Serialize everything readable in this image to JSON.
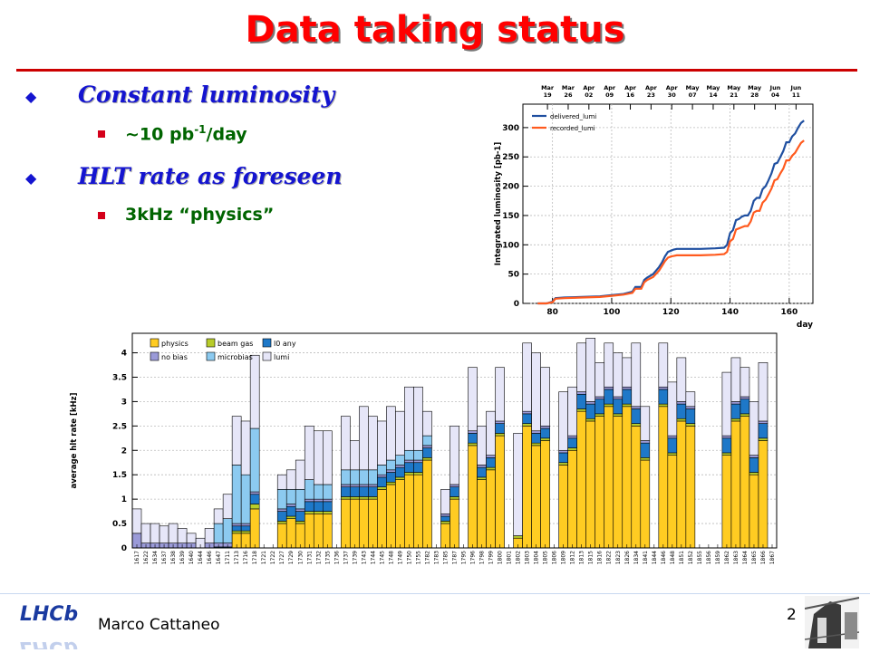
{
  "slide": {
    "title": "Data taking status",
    "author": "Marco Cattaneo",
    "page": "2",
    "logo_text": "LHCb"
  },
  "bullets": [
    {
      "text": "Constant luminosity",
      "sub": [
        "~10 pb",
        "-1",
        "/day"
      ]
    },
    {
      "text": "HLT rate as foreseen",
      "sub": [
        "3kHz “physics”"
      ]
    }
  ],
  "chart_data": [
    {
      "type": "line",
      "ylabel": "Integrated luminosity [pb-1]",
      "xlabel": "day",
      "xlim": [
        70,
        168
      ],
      "ylim": [
        0,
        340
      ],
      "xticks": [
        80,
        100,
        120,
        140,
        160
      ],
      "yticks": [
        0,
        50,
        100,
        150,
        200,
        250,
        300
      ],
      "top_axis": [
        {
          "m": "Mar",
          "d": "19",
          "x": 78.3
        },
        {
          "m": "Mar",
          "d": "26",
          "x": 85.3
        },
        {
          "m": "Apr",
          "d": "02",
          "x": 92.3
        },
        {
          "m": "Apr",
          "d": "09",
          "x": 99.3
        },
        {
          "m": "Apr",
          "d": "16",
          "x": 106.3
        },
        {
          "m": "Apr",
          "d": "23",
          "x": 113.3
        },
        {
          "m": "Apr",
          "d": "30",
          "x": 120.3
        },
        {
          "m": "May",
          "d": "07",
          "x": 127.3
        },
        {
          "m": "May",
          "d": "14",
          "x": 134.3
        },
        {
          "m": "May",
          "d": "21",
          "x": 141.3
        },
        {
          "m": "May",
          "d": "28",
          "x": 148.3
        },
        {
          "m": "Jun",
          "d": "04",
          "x": 155.3
        },
        {
          "m": "Jun",
          "d": "11",
          "x": 162.3
        }
      ],
      "series": [
        {
          "name": "delivered_lumi",
          "color": "#1f4fa0",
          "x": [
            75,
            78,
            80,
            81,
            84,
            90,
            96,
            100,
            104,
            107,
            108,
            110,
            111,
            112,
            114,
            116,
            117,
            118,
            119,
            120,
            121,
            122,
            130,
            135,
            138,
            139,
            140,
            141,
            142,
            143,
            144,
            145,
            146,
            147,
            148,
            149,
            150,
            151,
            152,
            153,
            154,
            155,
            156,
            157,
            158,
            159,
            160,
            161,
            162,
            163,
            164,
            165
          ],
          "y": [
            0,
            0,
            3,
            9,
            10,
            11,
            12,
            14,
            16,
            20,
            28,
            28,
            40,
            44,
            50,
            62,
            70,
            80,
            88,
            90,
            92,
            93,
            93,
            94,
            95,
            100,
            120,
            125,
            142,
            144,
            148,
            150,
            150,
            158,
            175,
            180,
            180,
            195,
            200,
            210,
            222,
            238,
            240,
            250,
            260,
            275,
            275,
            285,
            290,
            300,
            308,
            312
          ]
        },
        {
          "name": "recorded_lumi",
          "color": "#ff5a1e",
          "x": [
            75,
            78,
            80,
            81,
            84,
            90,
            96,
            100,
            104,
            107,
            108,
            110,
            111,
            112,
            114,
            116,
            117,
            118,
            119,
            120,
            121,
            122,
            130,
            135,
            138,
            139,
            140,
            141,
            142,
            143,
            144,
            145,
            146,
            147,
            148,
            149,
            150,
            151,
            152,
            153,
            154,
            155,
            156,
            157,
            158,
            159,
            160,
            161,
            162,
            163,
            164,
            165
          ],
          "y": [
            0,
            0,
            2,
            8,
            9,
            10,
            11,
            13,
            15,
            18,
            25,
            25,
            36,
            40,
            45,
            56,
            64,
            72,
            78,
            80,
            81,
            82,
            82,
            83,
            84,
            88,
            106,
            110,
            126,
            128,
            130,
            132,
            132,
            140,
            155,
            158,
            158,
            172,
            177,
            186,
            196,
            210,
            212,
            222,
            230,
            244,
            244,
            252,
            257,
            266,
            274,
            278
          ]
        }
      ]
    },
    {
      "type": "bar",
      "stacked": true,
      "ylabel": "average hlt rate [kHz]",
      "ylim": [
        0,
        4.4
      ],
      "yticks": [
        "0",
        "0.5",
        "1",
        "1.5",
        "2",
        "2.5",
        "3",
        "3.5",
        "4"
      ],
      "legend": [
        {
          "name": "physics",
          "color": "#ffcc22"
        },
        {
          "name": "beam gas",
          "color": "#b8cc2a"
        },
        {
          "name": "l0 any",
          "color": "#1e78c8"
        },
        {
          "name": "no bias",
          "color": "#9a9ad8"
        },
        {
          "name": "microbias",
          "color": "#8ccaf0"
        },
        {
          "name": "lumi",
          "color": "#e6e6f8"
        }
      ],
      "series_colors": [
        "#ffcc22",
        "#b8cc2a",
        "#1e78c8",
        "#9a9ad8",
        "#8ccaf0",
        "#e6e6f8"
      ],
      "categories": [
        "1617",
        "1622",
        "1634",
        "1637",
        "1638",
        "1639",
        "1640",
        "1644",
        "1646",
        "1647",
        "1711",
        "1713",
        "1716",
        "1718",
        "1721",
        "1722",
        "1727",
        "1729",
        "1730",
        "1731",
        "1732",
        "1735",
        "1736",
        "1737",
        "1739",
        "1743",
        "1744",
        "1745",
        "1748",
        "1749",
        "1750",
        "1755",
        "1782",
        "1783",
        "1785",
        "1787",
        "1795",
        "1796",
        "1798",
        "1799",
        "1800",
        "1801",
        "1802",
        "1803",
        "1804",
        "1805",
        "1806",
        "1809",
        "1812",
        "1813",
        "1815",
        "1816",
        "1822",
        "1823",
        "1826",
        "1834",
        "1841",
        "1844",
        "1846",
        "1848",
        "1851",
        "1852",
        "1855",
        "1856",
        "1859",
        "1862",
        "1863",
        "1864",
        "1865",
        "1866",
        "1867"
      ],
      "bars": [
        [
          0,
          0,
          0,
          0.3,
          0,
          0.5
        ],
        [
          0,
          0,
          0,
          0.1,
          0,
          0.4
        ],
        [
          0,
          0,
          0,
          0.1,
          0,
          0.4
        ],
        [
          0,
          0,
          0,
          0.1,
          0,
          0.35
        ],
        [
          0,
          0,
          0,
          0.1,
          0,
          0.4
        ],
        [
          0,
          0,
          0,
          0.1,
          0,
          0.3
        ],
        [
          0,
          0,
          0,
          0.1,
          0,
          0.2
        ],
        [
          0,
          0,
          0,
          0,
          0,
          0.2
        ],
        [
          0,
          0,
          0,
          0.1,
          0,
          0.3
        ],
        [
          0,
          0,
          0.02,
          0.08,
          0.4,
          0.3
        ],
        [
          0,
          0,
          0.02,
          0.08,
          0.5,
          0.5
        ],
        [
          0.3,
          0.05,
          0.1,
          0.05,
          1.2,
          1.0
        ],
        [
          0.3,
          0.05,
          0.1,
          0.05,
          1.0,
          1.1
        ],
        [
          0.8,
          0.1,
          0.2,
          0.05,
          1.3,
          1.5
        ],
        [
          0,
          0,
          0,
          0,
          0,
          0
        ],
        [
          0,
          0,
          0,
          0,
          0,
          0
        ],
        [
          0.5,
          0.05,
          0.2,
          0.05,
          0.4,
          0.3
        ],
        [
          0.6,
          0.05,
          0.2,
          0.05,
          0.3,
          0.4
        ],
        [
          0.5,
          0.05,
          0.2,
          0.05,
          0.4,
          0.6
        ],
        [
          0.7,
          0.05,
          0.2,
          0.05,
          0.4,
          1.1
        ],
        [
          0.7,
          0.05,
          0.2,
          0.05,
          0.3,
          1.1
        ],
        [
          0.7,
          0.05,
          0.2,
          0.05,
          0.3,
          1.1
        ],
        [
          0,
          0,
          0,
          0,
          0,
          0
        ],
        [
          1.0,
          0.05,
          0.2,
          0.05,
          0.3,
          1.1
        ],
        [
          1.0,
          0.05,
          0.2,
          0.05,
          0.3,
          0.6
        ],
        [
          1.0,
          0.05,
          0.2,
          0.05,
          0.3,
          1.3
        ],
        [
          1.0,
          0.05,
          0.2,
          0.05,
          0.3,
          1.1
        ],
        [
          1.2,
          0.05,
          0.2,
          0.05,
          0.2,
          0.9
        ],
        [
          1.3,
          0.05,
          0.2,
          0.05,
          0.2,
          1.1
        ],
        [
          1.4,
          0.05,
          0.2,
          0.05,
          0.2,
          0.9
        ],
        [
          1.5,
          0.05,
          0.2,
          0.05,
          0.2,
          1.3
        ],
        [
          1.5,
          0.05,
          0.2,
          0.05,
          0.2,
          1.3
        ],
        [
          1.8,
          0.05,
          0.2,
          0.05,
          0.2,
          0.5
        ],
        [
          0,
          0,
          0,
          0,
          0,
          0
        ],
        [
          0.5,
          0.05,
          0.1,
          0.05,
          0,
          0.5
        ],
        [
          1.0,
          0.05,
          0.2,
          0.05,
          0,
          1.2
        ],
        [
          0,
          0,
          0,
          0,
          0,
          0
        ],
        [
          2.1,
          0.05,
          0.2,
          0.05,
          0,
          1.3
        ],
        [
          1.4,
          0.05,
          0.2,
          0.05,
          0,
          0.8
        ],
        [
          1.6,
          0.05,
          0.2,
          0.05,
          0,
          0.9
        ],
        [
          2.3,
          0.05,
          0.2,
          0.05,
          0,
          1.1
        ],
        [
          0,
          0,
          0,
          0,
          0,
          0
        ],
        [
          0.2,
          0.05,
          0,
          0,
          0,
          2.1
        ],
        [
          2.5,
          0.05,
          0.2,
          0.05,
          0,
          1.4
        ],
        [
          2.1,
          0.05,
          0.2,
          0.05,
          0,
          1.6
        ],
        [
          2.2,
          0.05,
          0.2,
          0.05,
          0,
          1.2
        ],
        [
          0,
          0,
          0,
          0,
          0,
          0
        ],
        [
          1.7,
          0.05,
          0.2,
          0.05,
          0,
          1.2
        ],
        [
          2.0,
          0.05,
          0.2,
          0.05,
          0,
          1.0
        ],
        [
          2.8,
          0.05,
          0.3,
          0.05,
          0,
          1.0
        ],
        [
          2.6,
          0.05,
          0.3,
          0.05,
          0,
          1.3
        ],
        [
          2.7,
          0.05,
          0.3,
          0.05,
          0,
          0.7
        ],
        [
          2.9,
          0.05,
          0.3,
          0.05,
          0,
          0.9
        ],
        [
          2.7,
          0.05,
          0.3,
          0.05,
          0,
          0.9
        ],
        [
          2.9,
          0.05,
          0.3,
          0.05,
          0,
          0.6
        ],
        [
          2.5,
          0.05,
          0.3,
          0.05,
          0,
          1.3
        ],
        [
          1.8,
          0.05,
          0.3,
          0.05,
          0,
          0.7
        ],
        [
          0,
          0,
          0,
          0,
          0,
          0
        ],
        [
          2.9,
          0.05,
          0.3,
          0.05,
          0,
          0.9
        ],
        [
          1.9,
          0.05,
          0.3,
          0.05,
          0,
          1.1
        ],
        [
          2.6,
          0.05,
          0.3,
          0.05,
          0,
          0.9
        ],
        [
          2.5,
          0.05,
          0.3,
          0.05,
          0,
          0.3
        ],
        [
          0,
          0,
          0,
          0,
          0,
          0
        ],
        [
          0,
          0,
          0,
          0,
          0,
          0
        ],
        [
          0,
          0,
          0,
          0,
          0,
          0
        ],
        [
          1.9,
          0.05,
          0.3,
          0.05,
          0,
          1.3
        ],
        [
          2.6,
          0.05,
          0.3,
          0.05,
          0,
          0.9
        ],
        [
          2.7,
          0.05,
          0.3,
          0.05,
          0,
          0.6
        ],
        [
          1.5,
          0.05,
          0.3,
          0.05,
          0,
          1.1
        ],
        [
          2.2,
          0.05,
          0.3,
          0.05,
          0,
          1.2
        ],
        [
          0,
          0,
          0,
          0,
          0,
          0
        ]
      ]
    }
  ]
}
